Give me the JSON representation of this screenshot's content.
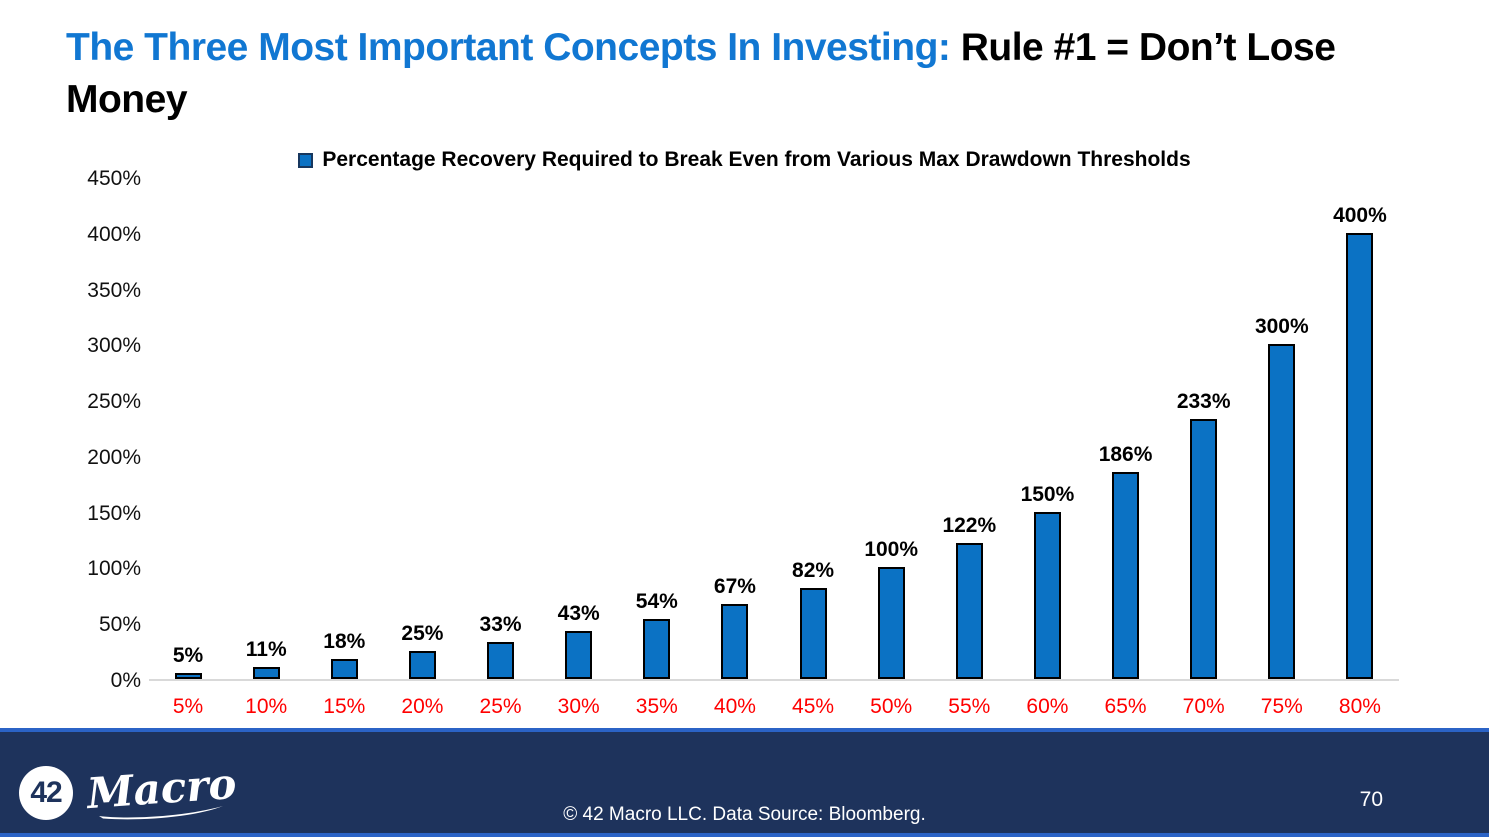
{
  "slide": {
    "title": {
      "highlight": "The Three Most Important Concepts In Investing: ",
      "rest": "Rule #1 = Don’t Lose Money"
    }
  },
  "chart_data": {
    "type": "bar",
    "title": "Percentage Recovery Required to Break Even from Various Max Drawdown Thresholds",
    "xlabel": "",
    "ylabel": "",
    "categories": [
      "5%",
      "10%",
      "15%",
      "20%",
      "25%",
      "30%",
      "35%",
      "40%",
      "45%",
      "50%",
      "55%",
      "60%",
      "65%",
      "70%",
      "75%",
      "80%"
    ],
    "values": [
      5,
      11,
      18,
      25,
      33,
      43,
      54,
      67,
      82,
      100,
      122,
      150,
      186,
      233,
      300,
      400
    ],
    "value_labels": [
      "5%",
      "11%",
      "18%",
      "25%",
      "33%",
      "43%",
      "54%",
      "67%",
      "82%",
      "100%",
      "122%",
      "150%",
      "186%",
      "233%",
      "300%",
      "400%"
    ],
    "ylim": [
      0,
      450
    ],
    "y_ticks": [
      0,
      50,
      100,
      150,
      200,
      250,
      300,
      350,
      400,
      450
    ],
    "y_tick_labels": [
      "0%",
      "50%",
      "100%",
      "150%",
      "200%",
      "250%",
      "300%",
      "350%",
      "400%",
      "450%"
    ],
    "grid": false,
    "legend_position": "top",
    "bar_color": "#0B72C4",
    "bar_border_color": "#000000",
    "x_tick_color": "#FF0000",
    "value_label_color": "#000000",
    "axis_line_color": "#D9D9D9"
  },
  "footer": {
    "logo": {
      "circle_text": "42",
      "script_text": "Macro"
    },
    "copyright": "© 42 Macro LLC. Data Source: Bloomberg.",
    "page_number": "70"
  },
  "colors": {
    "title_blue": "#1177D2",
    "footer_navy": "#1E335C",
    "accent_blue": "#2B63C6"
  }
}
